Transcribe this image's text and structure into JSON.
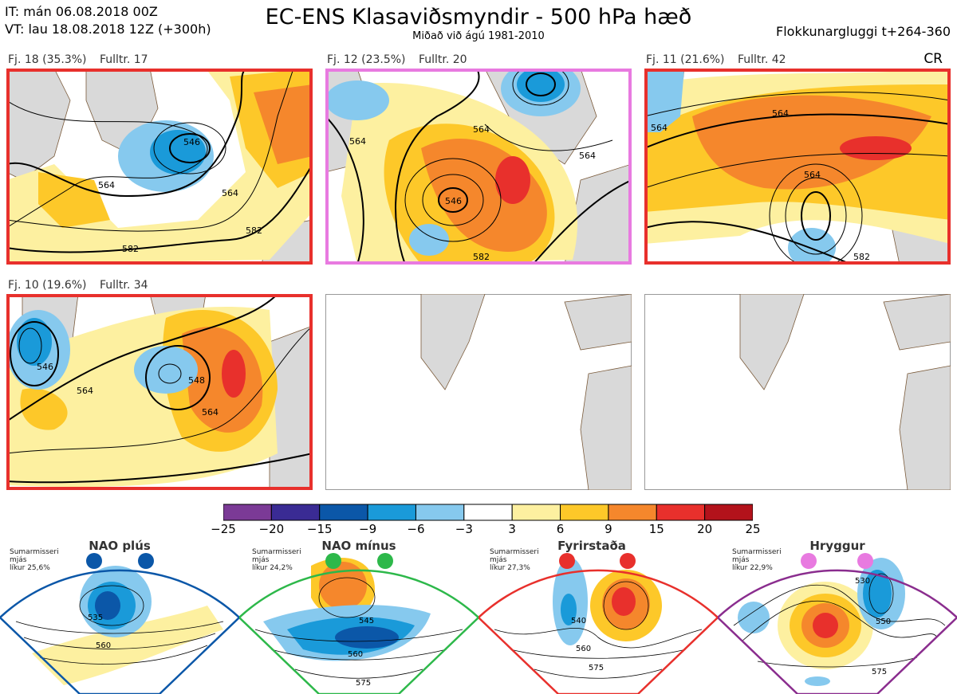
{
  "header": {
    "it": "IT: mán 06.08.2018 00Z",
    "vt": "VT: lau 18.08.2018 12Z  (+300h)",
    "title": "EC-ENS Klasaviðsmyndir - 500 hPa hæð",
    "subtitle": "Miðað við ágú 1981-2010",
    "window": "Flokkunargluggi t+264-360",
    "cr": "CR"
  },
  "colors": {
    "red_frame": "#e8302c",
    "pink_frame": "#e87ae0",
    "land": "#d9d9d9",
    "coast": "#7a5a3a"
  },
  "chart_data": {
    "type": "heatmap",
    "panels": [
      {
        "label": "Fj. 18 (35.3%)",
        "count": "Fulltr. 17",
        "frame": "red",
        "contour_labels": [
          "546",
          "564",
          "564",
          "582",
          "582"
        ]
      },
      {
        "label": "Fj. 12 (23.5%)",
        "count": "Fulltr. 20",
        "frame": "pink",
        "contour_labels": [
          "546",
          "564",
          "564",
          "564",
          "582"
        ]
      },
      {
        "label": "Fj. 11 (21.6%)",
        "count": "Fulltr. 42",
        "frame": "red",
        "contour_labels": [
          "564",
          "564",
          "564",
          "582"
        ]
      },
      {
        "label": "Fj. 10 (19.6%)",
        "count": "Fulltr. 34",
        "frame": "red",
        "contour_labels": [
          "546",
          "564",
          "548",
          "564"
        ]
      }
    ],
    "colorbar": {
      "ticks": [
        "−25",
        "−20",
        "−15",
        "−9",
        "−6",
        "−3",
        "3",
        "6",
        "9",
        "15",
        "20",
        "25"
      ],
      "colors": [
        "#7b3a96",
        "#3a2b94",
        "#0b57a8",
        "#1a9ad9",
        "#86c9ee",
        "#ffffff",
        "#fdf0a0",
        "#fdc829",
        "#f5872c",
        "#e8302c",
        "#b3121b"
      ]
    },
    "climate_regimes": [
      {
        "name": "NAO plús",
        "note": "Sumarmisseri\nmjás\nlíkur 25,6%",
        "dot_color": "#0b57a8",
        "frame": "#0b57a8",
        "labels": [
          "535",
          "560"
        ]
      },
      {
        "name": "NAO mínus",
        "note": "Sumarmisseri\nmjás\nlíkur 24,2%",
        "dot_color": "#2db84a",
        "frame": "#2db84a",
        "labels": [
          "545",
          "560",
          "575"
        ]
      },
      {
        "name": "Fyrirstaða",
        "note": "Sumarmisseri\nmjás\nlíkur 27,3%",
        "dot_color": "#e8302c",
        "frame": "#e8302c",
        "labels": [
          "540",
          "560",
          "575"
        ]
      },
      {
        "name": "Hryggur",
        "note": "Sumarmisseri\nmjás\nlíkur 22,9%",
        "dot_color": "#e87ae0",
        "frame": "#8a2d8e",
        "labels": [
          "530",
          "550",
          "575"
        ]
      }
    ]
  }
}
